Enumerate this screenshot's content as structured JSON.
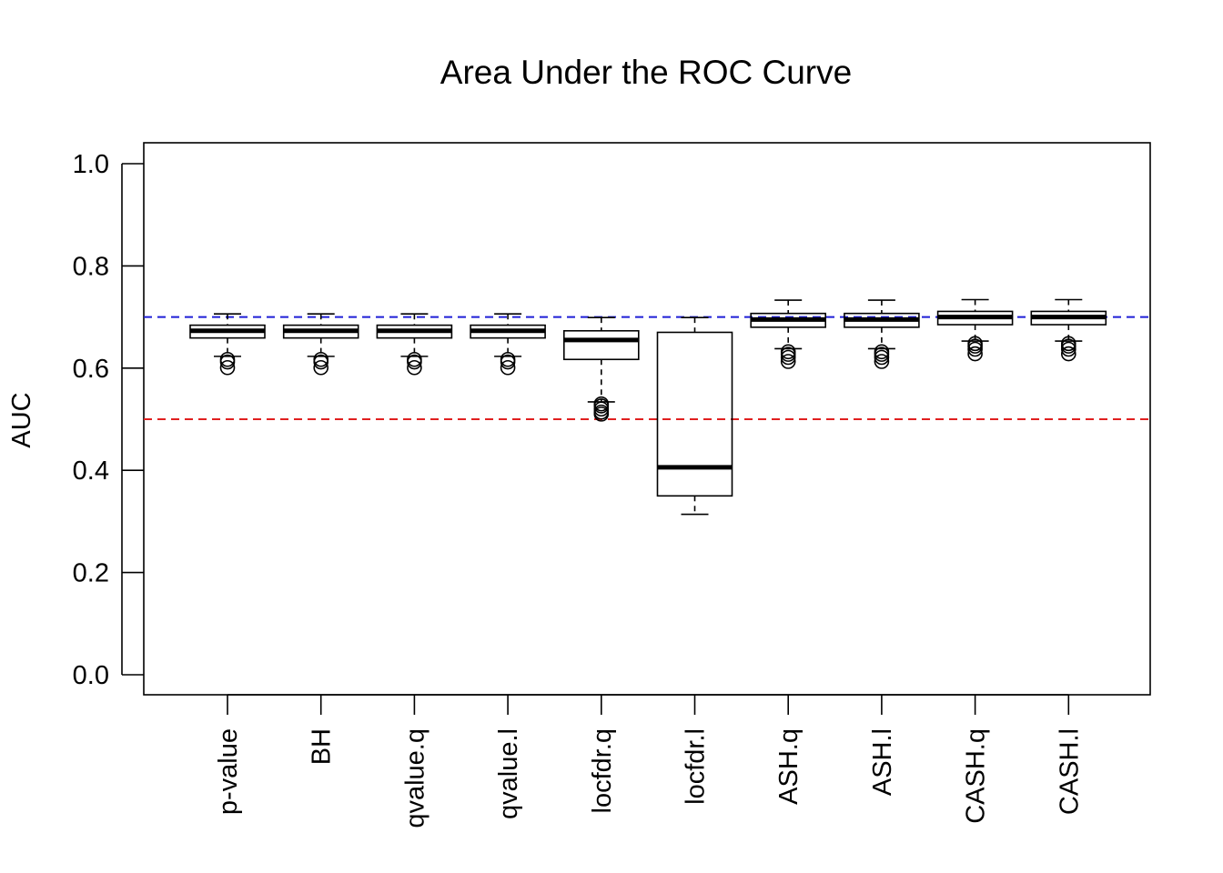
{
  "chart_data": {
    "type": "boxplot",
    "title": "Area Under the ROC Curve",
    "xlabel": "",
    "ylabel": "AUC",
    "ylim": [
      -0.04,
      1.04
    ],
    "yticks": [
      0.0,
      0.2,
      0.4,
      0.6,
      0.8,
      1.0
    ],
    "ytick_labels": [
      "0.0",
      "0.2",
      "0.4",
      "0.6",
      "0.8",
      "1.0"
    ],
    "grid": false,
    "reference_lines": [
      {
        "name": "target-auc-line",
        "y": 0.7,
        "color": "#1f1fd6",
        "style": "dashed"
      },
      {
        "name": "chance-auc-line",
        "y": 0.5,
        "color": "#e02020",
        "style": "dashed"
      }
    ],
    "categories": [
      "p-value",
      "BH",
      "qvalue.q",
      "qvalue.l",
      "locfdr.q",
      "locfdr.l",
      "ASH.q",
      "ASH.l",
      "CASH.q",
      "CASH.l"
    ],
    "boxes": [
      {
        "label": "p-value",
        "whisker_low": 0.623,
        "q1": 0.659,
        "median": 0.673,
        "q3": 0.684,
        "whisker_high": 0.706,
        "outliers": [
          0.612,
          0.617,
          0.601
        ]
      },
      {
        "label": "BH",
        "whisker_low": 0.623,
        "q1": 0.659,
        "median": 0.673,
        "q3": 0.684,
        "whisker_high": 0.706,
        "outliers": [
          0.612,
          0.617,
          0.601
        ]
      },
      {
        "label": "qvalue.q",
        "whisker_low": 0.623,
        "q1": 0.659,
        "median": 0.673,
        "q3": 0.684,
        "whisker_high": 0.706,
        "outliers": [
          0.612,
          0.617,
          0.601
        ]
      },
      {
        "label": "qvalue.l",
        "whisker_low": 0.623,
        "q1": 0.659,
        "median": 0.673,
        "q3": 0.684,
        "whisker_high": 0.706,
        "outliers": [
          0.612,
          0.617,
          0.601
        ]
      },
      {
        "label": "locfdr.q",
        "whisker_low": 0.534,
        "q1": 0.617,
        "median": 0.655,
        "q3": 0.673,
        "whisker_high": 0.699,
        "outliers": [
          0.53,
          0.526,
          0.52,
          0.514,
          0.51
        ]
      },
      {
        "label": "locfdr.l",
        "whisker_low": 0.314,
        "q1": 0.35,
        "median": 0.406,
        "q3": 0.67,
        "whisker_high": 0.699,
        "outliers": []
      },
      {
        "label": "ASH.q",
        "whisker_low": 0.638,
        "q1": 0.68,
        "median": 0.695,
        "q3": 0.707,
        "whisker_high": 0.733,
        "outliers": [
          0.632,
          0.627,
          0.621,
          0.613
        ]
      },
      {
        "label": "ASH.l",
        "whisker_low": 0.638,
        "q1": 0.68,
        "median": 0.695,
        "q3": 0.707,
        "whisker_high": 0.733,
        "outliers": [
          0.632,
          0.627,
          0.621,
          0.613
        ]
      },
      {
        "label": "CASH.q",
        "whisker_low": 0.653,
        "q1": 0.685,
        "median": 0.7,
        "q3": 0.711,
        "whisker_high": 0.734,
        "outliers": [
          0.648,
          0.643,
          0.637,
          0.628
        ]
      },
      {
        "label": "CASH.l",
        "whisker_low": 0.653,
        "q1": 0.685,
        "median": 0.7,
        "q3": 0.711,
        "whisker_high": 0.734,
        "outliers": [
          0.648,
          0.643,
          0.637,
          0.628
        ]
      }
    ]
  }
}
